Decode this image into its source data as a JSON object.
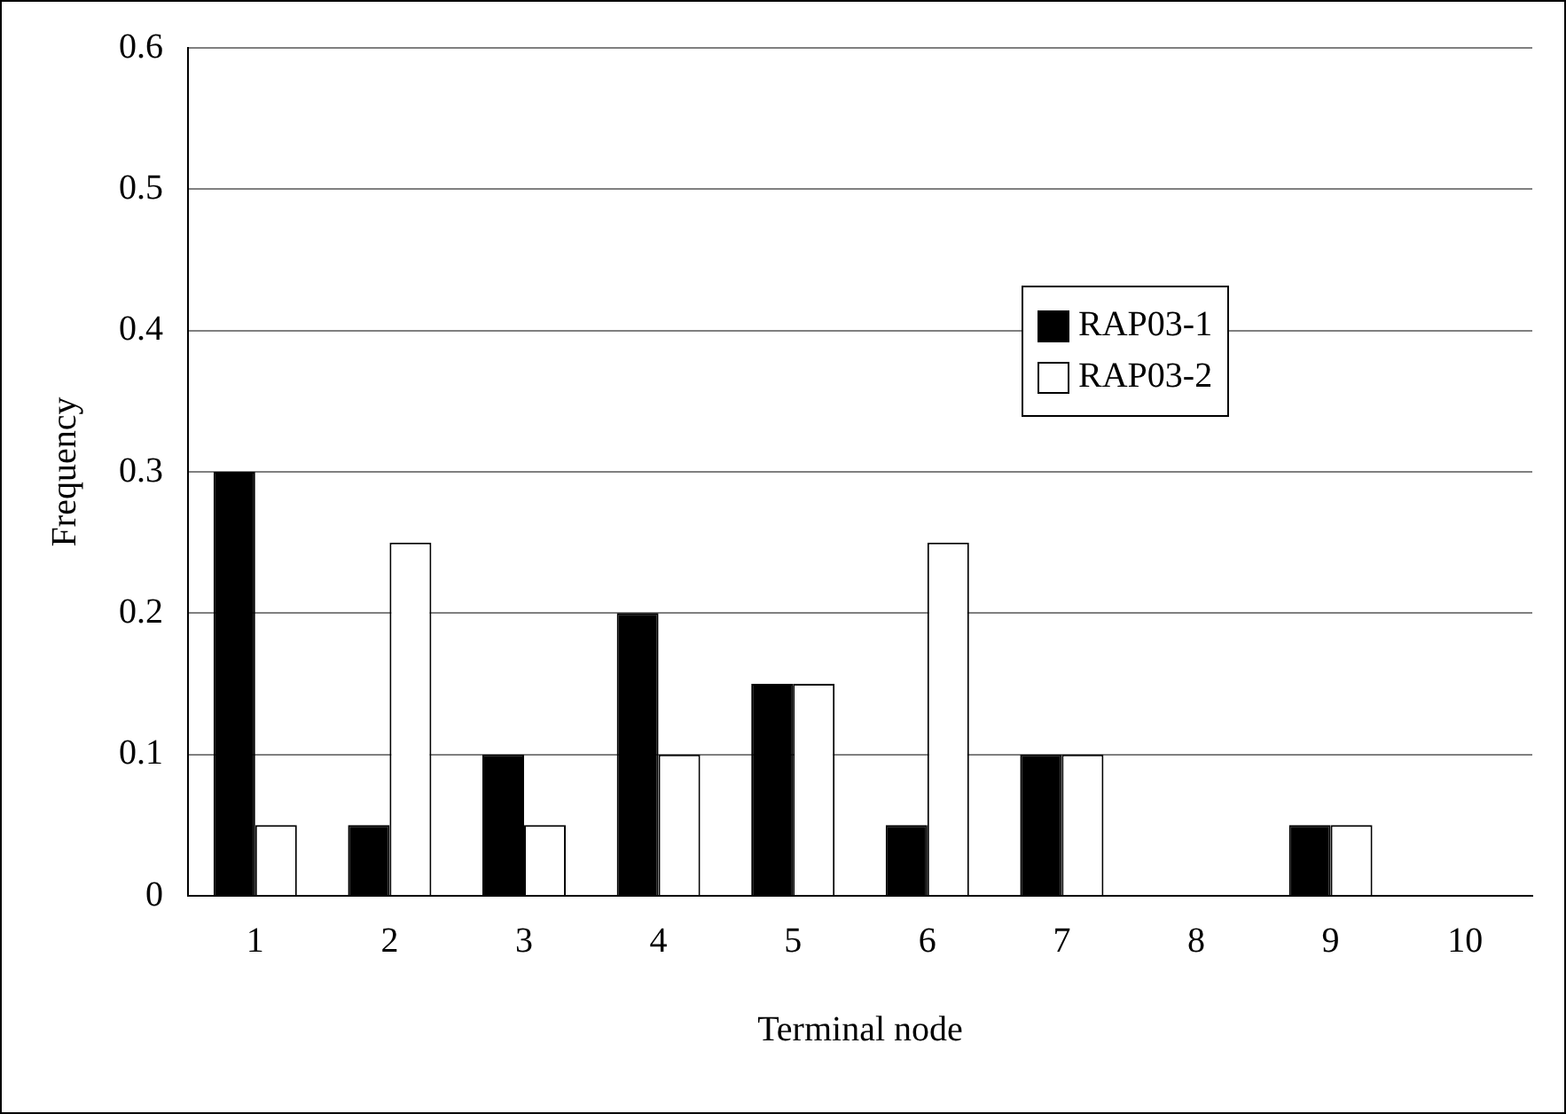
{
  "chart_data": {
    "type": "bar",
    "xlabel": "Terminal node",
    "ylabel": "Frequency",
    "categories": [
      "1",
      "2",
      "3",
      "4",
      "5",
      "6",
      "7",
      "8",
      "9",
      "10"
    ],
    "series": [
      {
        "name": "RAP03-1",
        "color": "#000000",
        "values": [
          0.3,
          0.05,
          0.1,
          0.2,
          0.15,
          0.05,
          0.1,
          0,
          0.05,
          0
        ]
      },
      {
        "name": "RAP03-2",
        "color": "#ffffff",
        "values": [
          0.05,
          0.25,
          0.05,
          0.1,
          0.15,
          0.25,
          0.1,
          0,
          0.05,
          0
        ]
      }
    ],
    "ylim": [
      0,
      0.6
    ],
    "yticks": [
      0,
      0.1,
      0.2,
      0.3,
      0.4,
      0.5,
      0.6
    ],
    "grid": "y",
    "legend": "right"
  }
}
